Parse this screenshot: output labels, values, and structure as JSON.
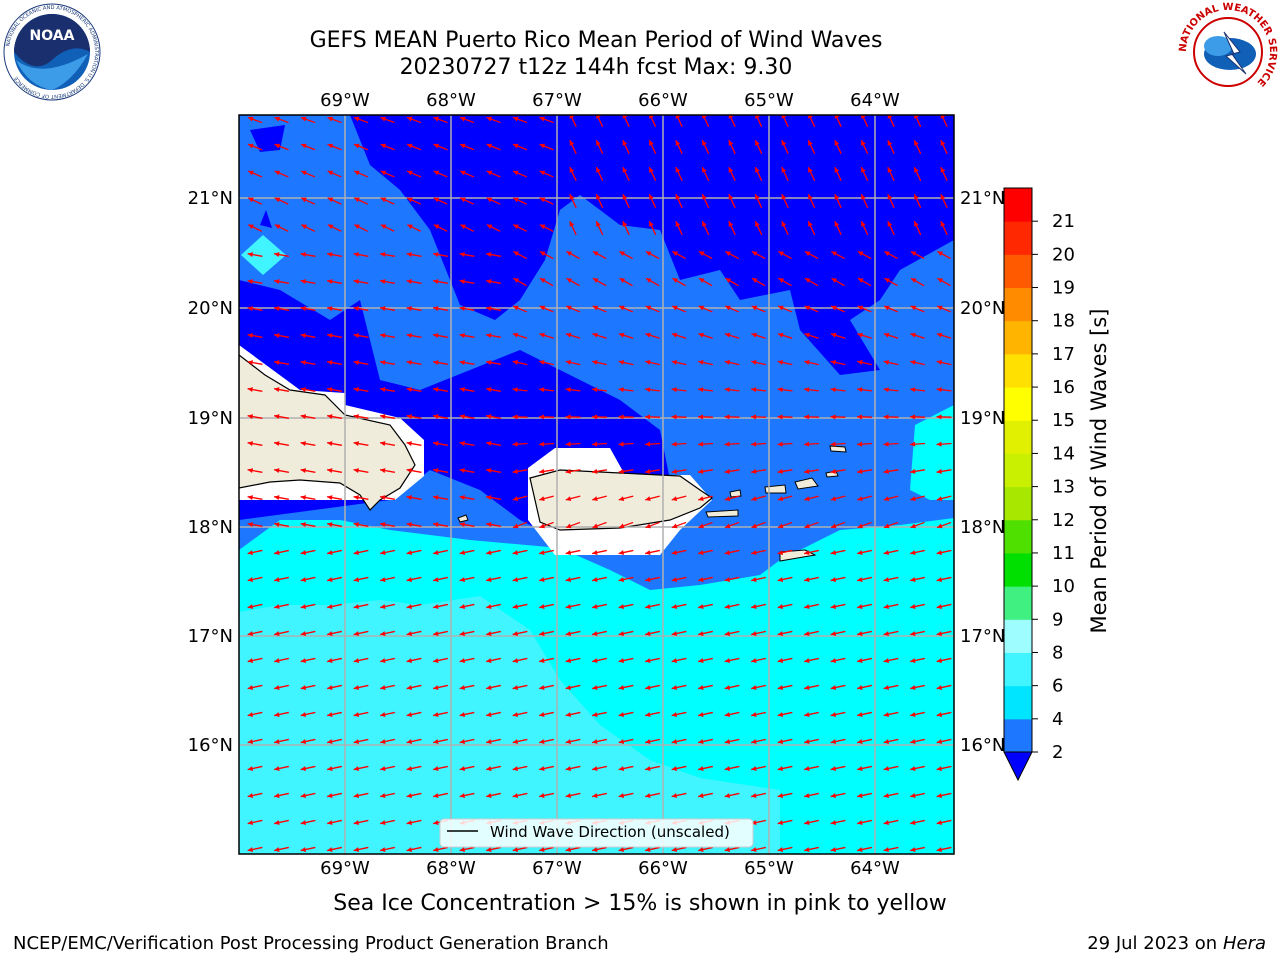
{
  "header": {
    "title_line1": "GEFS MEAN Puerto Rico Mean Period of Wind Waves",
    "title_line2": "20230727 t12z 144h fcst   Max: 9.30"
  },
  "logos": {
    "noaa_text": "NOAA",
    "noaa_ring_text": "NATIONAL OCEANIC AND ATMOSPHERIC ADMINISTRATION",
    "noaa_ring_bottom": "U.S. DEPARTMENT OF COMMERCE",
    "nws_ring_text": "NATIONAL WEATHER SERVICE"
  },
  "map": {
    "lon_labels": [
      "69°W",
      "68°W",
      "67°W",
      "66°W",
      "65°W",
      "64°W"
    ],
    "lat_labels": [
      "21°N",
      "20°N",
      "19°N",
      "18°N",
      "17°N",
      "16°N"
    ],
    "legend_label": "Wind Wave Direction (unscaled)",
    "land_color": "#efecdc",
    "arrow_color": "#ff0000"
  },
  "colorbar": {
    "label": "Mean Period of Wind Waves [s]",
    "ticks": [
      "2",
      "4",
      "6",
      "8",
      "9",
      "10",
      "11",
      "12",
      "13",
      "14",
      "15",
      "16",
      "17",
      "18",
      "19",
      "20",
      "21"
    ],
    "colors": [
      "#1e78ff",
      "#00e5ff",
      "#40f5ff",
      "#9efdff",
      "#40f080",
      "#00e000",
      "#50e000",
      "#a8e800",
      "#c8f000",
      "#e0f000",
      "#ffff00",
      "#ffe000",
      "#ffb400",
      "#ff8c00",
      "#ff5a00",
      "#ff2800",
      "#ff0000"
    ],
    "under_color": "#0000ff"
  },
  "footer": {
    "subtitle": "Sea Ice Concentration > 15% is shown in pink to yellow",
    "left": "NCEP/EMC/Verification Post Processing Product Generation Branch",
    "right_date": "29 Jul 2023 on",
    "right_host": "Hera"
  }
}
